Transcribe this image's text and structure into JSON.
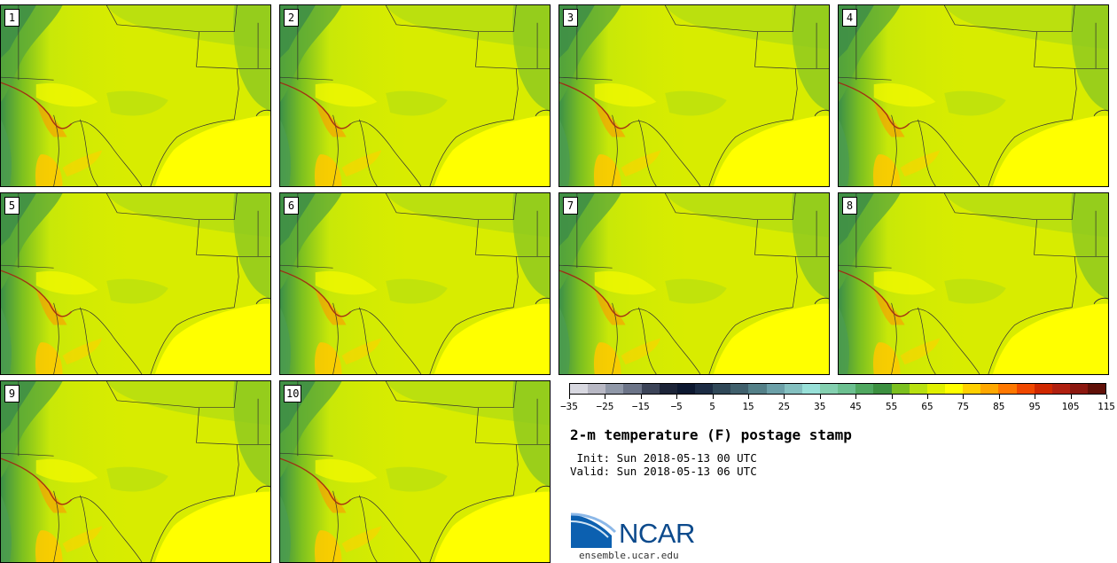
{
  "stamps": [
    {
      "label": "1"
    },
    {
      "label": "2"
    },
    {
      "label": "3"
    },
    {
      "label": "4"
    },
    {
      "label": "5"
    },
    {
      "label": "6"
    },
    {
      "label": "7"
    },
    {
      "label": "8"
    },
    {
      "label": "9"
    },
    {
      "label": "10"
    }
  ],
  "colorbar": {
    "colors": [
      "#d8d8e0",
      "#b8b8c4",
      "#9098a8",
      "#6c7488",
      "#3c4458",
      "#1c2438",
      "#0c1830",
      "#1c2c44",
      "#304858",
      "#40606c",
      "#548088",
      "#6ca0a8",
      "#84c0c0",
      "#98e0d8",
      "#84d0b0",
      "#6cc090",
      "#50a860",
      "#3c9040",
      "#7cc020",
      "#b8e010",
      "#e0f000",
      "#ffff00",
      "#ffd000",
      "#ffa800",
      "#ff7800",
      "#f04800",
      "#d02800",
      "#b02010",
      "#8c1810",
      "#601008"
    ],
    "tick_labels": [
      "−35",
      "−25",
      "−15",
      "−5",
      "5",
      "15",
      "25",
      "35",
      "45",
      "55",
      "65",
      "75",
      "85",
      "95",
      "105",
      "115"
    ]
  },
  "title": "2-m temperature (F) postage stamp",
  "init_text": " Init: Sun 2018-05-13 00 UTC",
  "valid_text": "Valid: Sun 2018-05-13 06 UTC",
  "logo_text": "NCAR",
  "url": "ensemble.ucar.edu"
}
